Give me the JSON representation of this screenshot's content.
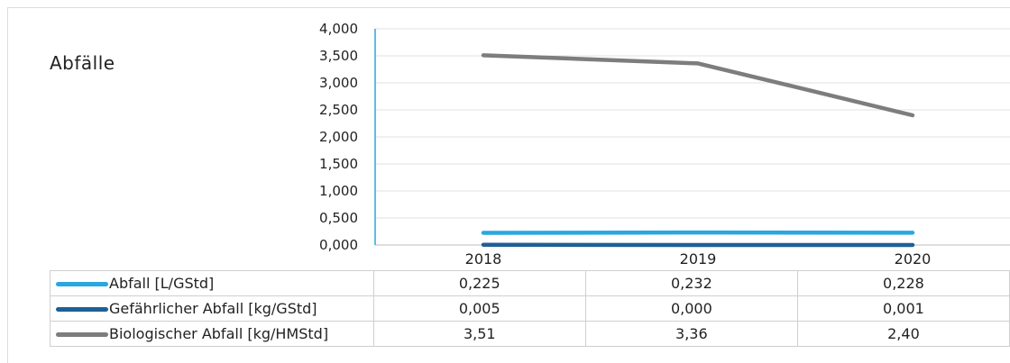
{
  "chart_data": {
    "type": "line",
    "title": "Abfälle",
    "categories": [
      "2018",
      "2019",
      "2020"
    ],
    "ylim": [
      0,
      4.0
    ],
    "y_ticks": [
      "0,000",
      "0,500",
      "1,000",
      "1,500",
      "2,000",
      "2,500",
      "3,000",
      "3,500",
      "4,000"
    ],
    "grid": true,
    "legend": "table-below",
    "series": [
      {
        "name": "Abfall [L/GStd]",
        "values": [
          0.225,
          0.232,
          0.228
        ],
        "labels": [
          "0,225",
          "0,232",
          "0,228"
        ],
        "color": "#2aa7e0"
      },
      {
        "name": "Gefährlicher Abfall [kg/GStd]",
        "values": [
          0.005,
          0.0,
          0.001
        ],
        "labels": [
          "0,005",
          "0,000",
          "0,001"
        ],
        "color": "#1f5f95"
      },
      {
        "name": "Biologischer Abfall [kg/HMStd]",
        "values": [
          3.51,
          3.36,
          2.4
        ],
        "labels": [
          "3,51",
          "3,36",
          "2,40"
        ],
        "color": "#7d7d7d"
      }
    ]
  }
}
